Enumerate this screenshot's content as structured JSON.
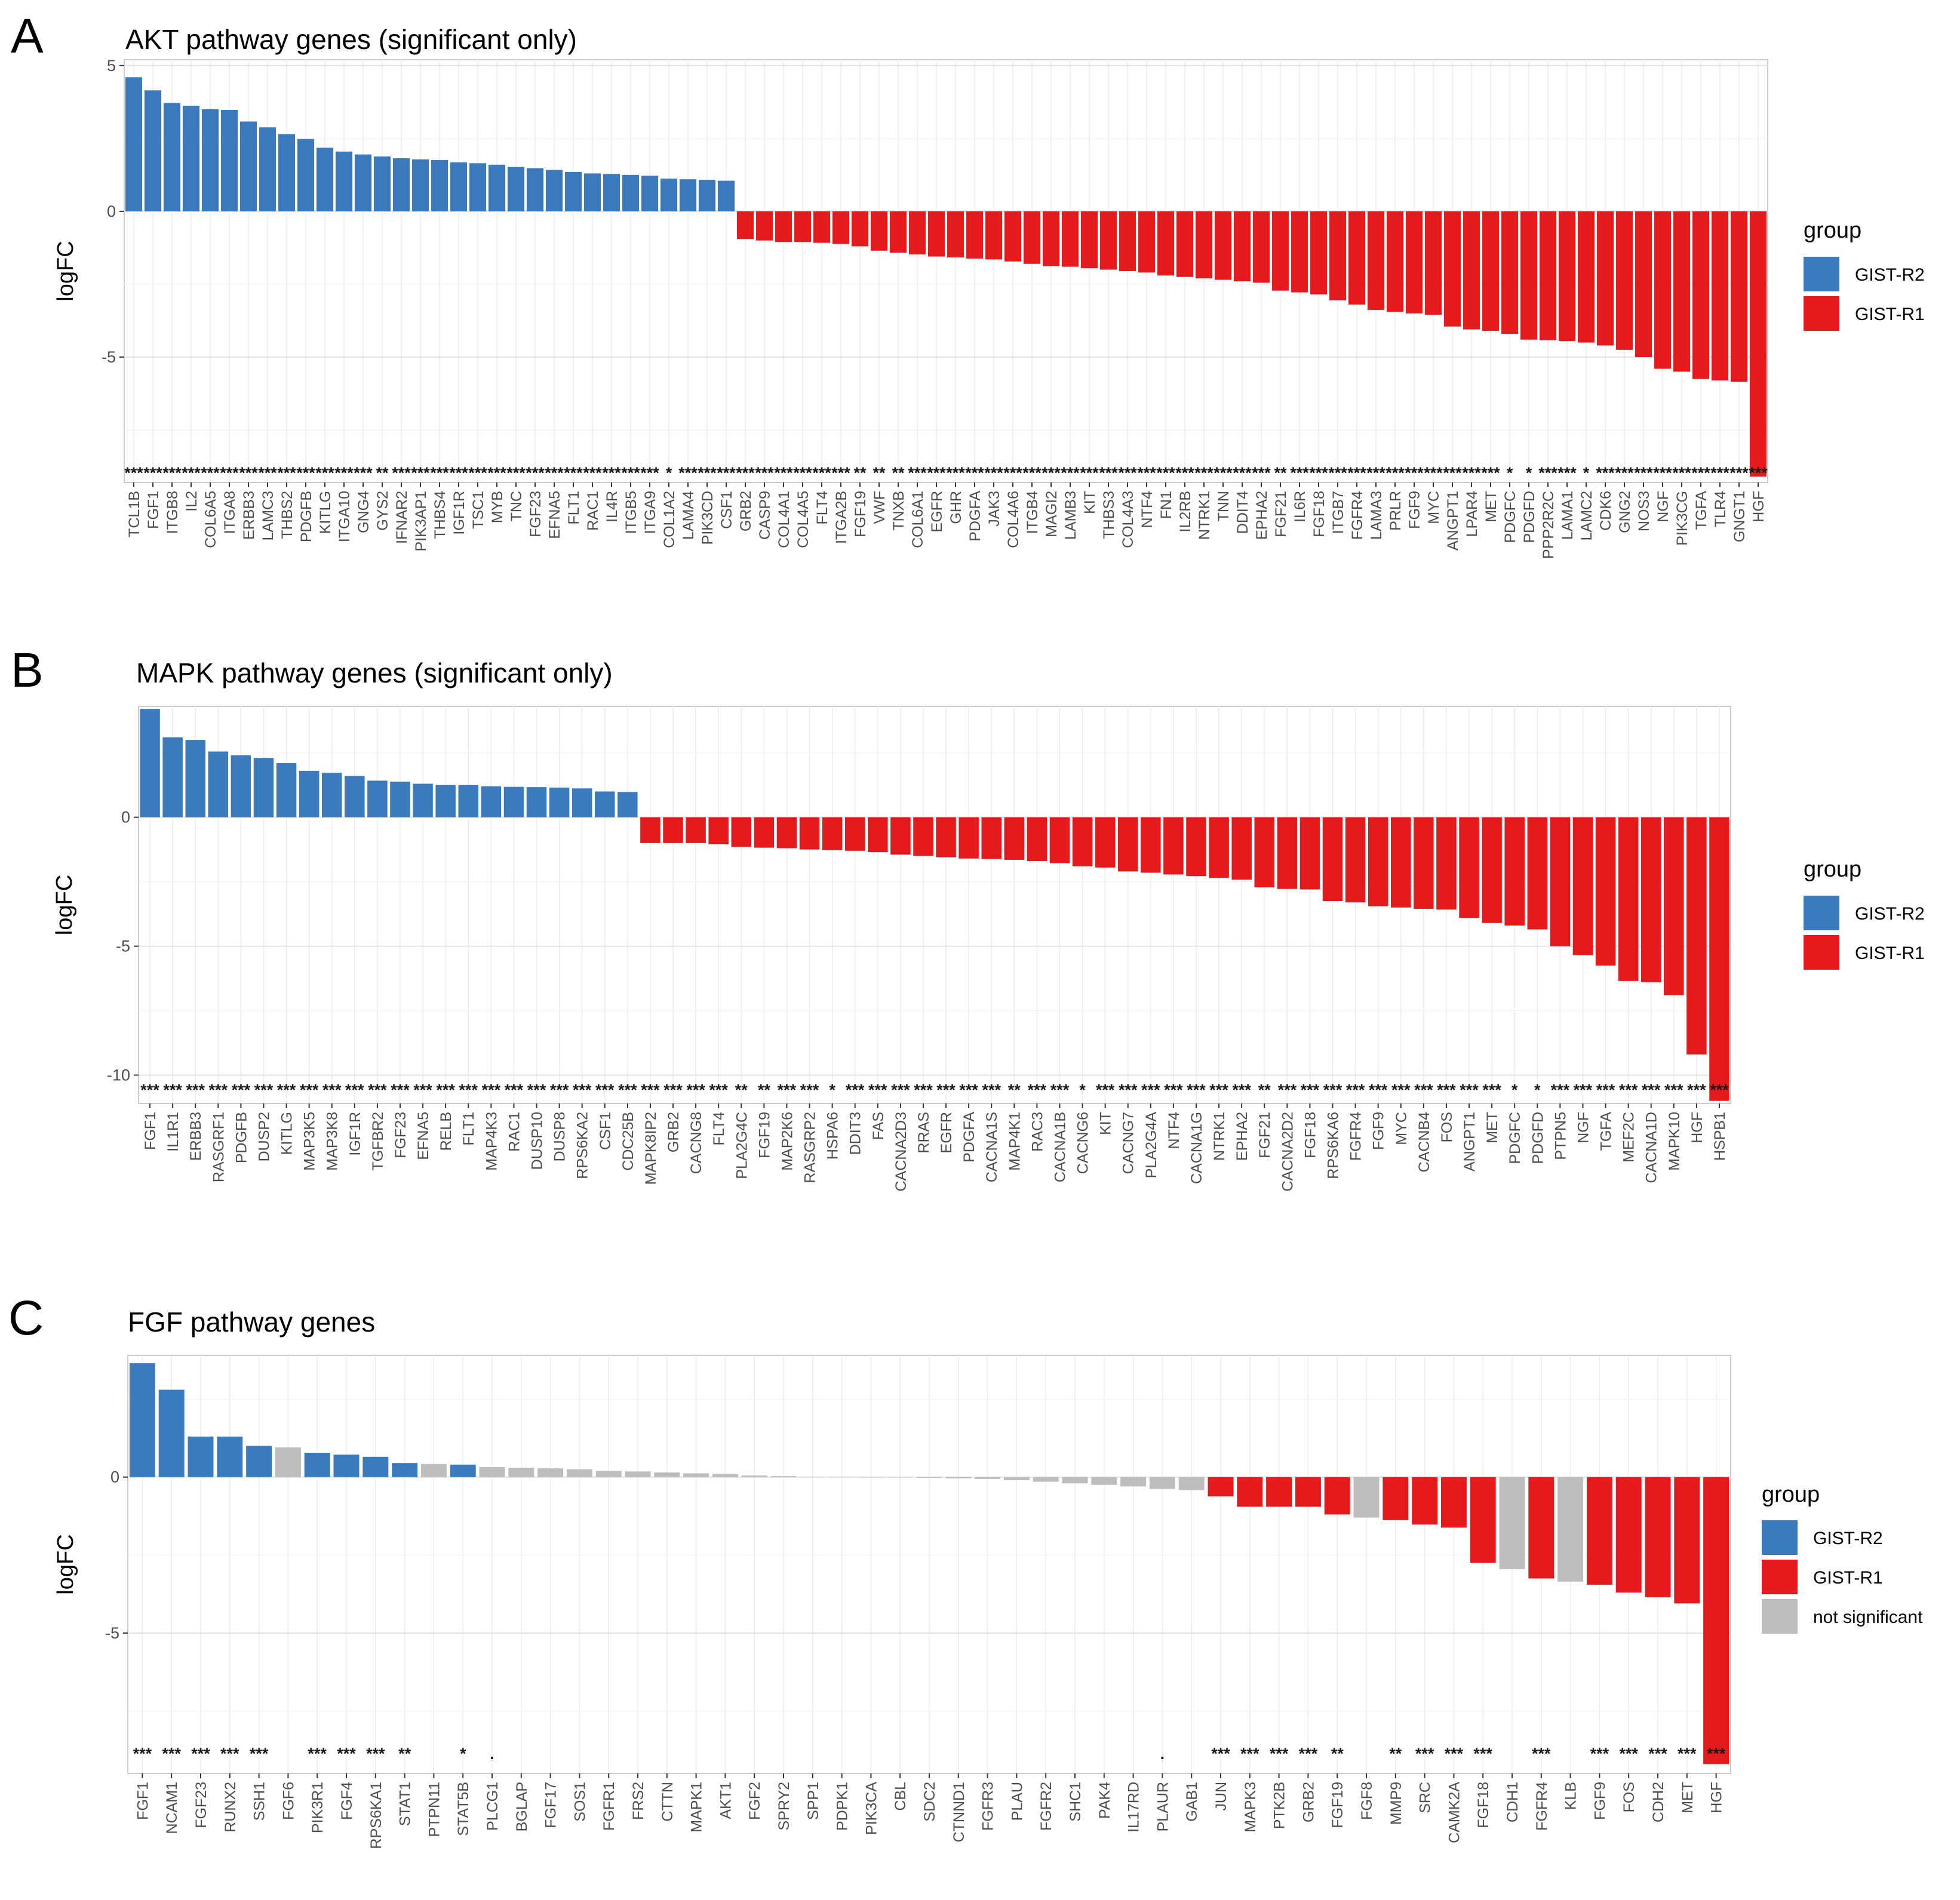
{
  "colors": {
    "GIST-R2": "#3b7bbd",
    "GIST-R1": "#e41a1c",
    "not significant": "#bdbdbd"
  },
  "chart_data": [
    {
      "panel": "A",
      "type": "bar",
      "title": "AKT pathway genes (significant only)",
      "ylabel": "logFC",
      "xlabel": "",
      "ylim": [
        -9.3,
        5.2
      ],
      "yticks": [
        5,
        0,
        -5
      ],
      "legend": {
        "title": "group",
        "entries": [
          "GIST-R2",
          "GIST-R1"
        ],
        "position": "right"
      },
      "categories": [
        "TCL1B",
        "FGF1",
        "ITGB8",
        "IL2",
        "COL6A5",
        "ITGA8",
        "ERBB3",
        "LAMC3",
        "THBS2",
        "PDGFB",
        "KITLG",
        "ITGA10",
        "GNG4",
        "GYS2",
        "IFNAR2",
        "PIK3AP1",
        "THBS4",
        "IGF1R",
        "TSC1",
        "MYB",
        "TNC",
        "FGF23",
        "EFNA5",
        "FLT1",
        "RAC1",
        "IL4R",
        "ITGB5",
        "ITGA9",
        "COL1A2",
        "LAMA4",
        "PIK3CD",
        "CSF1",
        "GRB2",
        "CASP9",
        "COL4A1",
        "COL4A5",
        "FLT4",
        "ITGA2B",
        "FGF19",
        "VWF",
        "TNXB",
        "COL6A1",
        "EGFR",
        "GHR",
        "PDGFA",
        "JAK3",
        "COL4A6",
        "ITGB4",
        "MAGI2",
        "LAMB3",
        "KIT",
        "THBS3",
        "COL4A3",
        "NTF4",
        "FN1",
        "IL2RB",
        "NTRK1",
        "TNN",
        "DDIT4",
        "EPHA2",
        "FGF21",
        "IL6R",
        "FGF18",
        "ITGB7",
        "FGFR4",
        "LAMA3",
        "PRLR",
        "FGF9",
        "MYC",
        "ANGPT1",
        "LPAR4",
        "MET",
        "PDGFC",
        "PDGFD",
        "PPP2R2C",
        "LAMA1",
        "LAMC2",
        "CDK6",
        "GNG2",
        "NOS3",
        "NGF",
        "PIK3CG",
        "TGFA",
        "TLR4",
        "GNGT1",
        "HGF"
      ],
      "values": [
        4.6,
        4.15,
        3.72,
        3.62,
        3.5,
        3.48,
        3.08,
        2.88,
        2.65,
        2.48,
        2.18,
        2.05,
        1.95,
        1.88,
        1.82,
        1.78,
        1.76,
        1.68,
        1.65,
        1.6,
        1.52,
        1.48,
        1.42,
        1.35,
        1.3,
        1.28,
        1.25,
        1.22,
        1.12,
        1.1,
        1.08,
        1.05,
        -0.95,
        -1.0,
        -1.05,
        -1.05,
        -1.08,
        -1.12,
        -1.2,
        -1.35,
        -1.42,
        -1.48,
        -1.55,
        -1.58,
        -1.62,
        -1.65,
        -1.72,
        -1.8,
        -1.88,
        -1.9,
        -1.95,
        -2.0,
        -2.05,
        -2.1,
        -2.2,
        -2.25,
        -2.3,
        -2.35,
        -2.4,
        -2.45,
        -2.72,
        -2.78,
        -2.85,
        -3.05,
        -3.2,
        -3.38,
        -3.45,
        -3.5,
        -3.55,
        -3.95,
        -4.05,
        -4.1,
        -4.2,
        -4.4,
        -4.42,
        -4.45,
        -4.5,
        -4.6,
        -4.75,
        -5.0,
        -5.4,
        -5.5,
        -5.75,
        -5.8,
        -5.85,
        -9.1
      ],
      "groups": [
        "GIST-R2",
        "GIST-R2",
        "GIST-R2",
        "GIST-R2",
        "GIST-R2",
        "GIST-R2",
        "GIST-R2",
        "GIST-R2",
        "GIST-R2",
        "GIST-R2",
        "GIST-R2",
        "GIST-R2",
        "GIST-R2",
        "GIST-R2",
        "GIST-R2",
        "GIST-R2",
        "GIST-R2",
        "GIST-R2",
        "GIST-R2",
        "GIST-R2",
        "GIST-R2",
        "GIST-R2",
        "GIST-R2",
        "GIST-R2",
        "GIST-R2",
        "GIST-R2",
        "GIST-R2",
        "GIST-R2",
        "GIST-R2",
        "GIST-R2",
        "GIST-R2",
        "GIST-R2",
        "GIST-R1",
        "GIST-R1",
        "GIST-R1",
        "GIST-R1",
        "GIST-R1",
        "GIST-R1",
        "GIST-R1",
        "GIST-R1",
        "GIST-R1",
        "GIST-R1",
        "GIST-R1",
        "GIST-R1",
        "GIST-R1",
        "GIST-R1",
        "GIST-R1",
        "GIST-R1",
        "GIST-R1",
        "GIST-R1",
        "GIST-R1",
        "GIST-R1",
        "GIST-R1",
        "GIST-R1",
        "GIST-R1",
        "GIST-R1",
        "GIST-R1",
        "GIST-R1",
        "GIST-R1",
        "GIST-R1",
        "GIST-R1",
        "GIST-R1",
        "GIST-R1",
        "GIST-R1",
        "GIST-R1",
        "GIST-R1",
        "GIST-R1",
        "GIST-R1",
        "GIST-R1",
        "GIST-R1",
        "GIST-R1",
        "GIST-R1",
        "GIST-R1",
        "GIST-R1",
        "GIST-R1",
        "GIST-R1",
        "GIST-R1",
        "GIST-R1",
        "GIST-R1",
        "GIST-R1",
        "GIST-R1",
        "GIST-R1",
        "GIST-R1",
        "GIST-R1",
        "GIST-R1",
        "GIST-R1"
      ],
      "significance": [
        "***",
        "***",
        "***",
        "***",
        "***",
        "***",
        "***",
        "***",
        "***",
        "***",
        "***",
        "***",
        "***",
        "**",
        "***",
        "***",
        "***",
        "***",
        "***",
        "***",
        "***",
        "***",
        "***",
        "***",
        "***",
        "***",
        "***",
        "***",
        "*",
        "***",
        "***",
        "***",
        "***",
        "***",
        "***",
        "***",
        "***",
        "***",
        "**",
        "**",
        "**",
        "***",
        "***",
        "***",
        "***",
        "***",
        "***",
        "***",
        "***",
        "***",
        "***",
        "***",
        "***",
        "***",
        "***",
        "***",
        "***",
        "***",
        "***",
        "***",
        "**",
        "***",
        "***",
        "***",
        "***",
        "***",
        "***",
        "***",
        "***",
        "***",
        "***",
        "***",
        "*",
        "*",
        "***",
        "***",
        "*",
        "***",
        "***",
        "***",
        "***",
        "***",
        "***",
        "***",
        "***",
        "***"
      ],
      "sig_y": -8.95
    },
    {
      "panel": "B",
      "type": "bar",
      "title": "MAPK pathway genes (significant only)",
      "ylabel": "logFC",
      "xlabel": "",
      "ylim": [
        -11.1,
        4.3
      ],
      "yticks": [
        0,
        -5,
        -10
      ],
      "legend": {
        "title": "group",
        "entries": [
          "GIST-R2",
          "GIST-R1"
        ],
        "position": "right"
      },
      "categories": [
        "FGF1",
        "IL1R1",
        "ERBB3",
        "RASGRF1",
        "PDGFB",
        "DUSP2",
        "KITLG",
        "MAP3K5",
        "MAP3K8",
        "IGF1R",
        "TGFBR2",
        "FGF23",
        "EFNA5",
        "RELB",
        "FLT1",
        "MAP4K3",
        "RAC1",
        "DUSP10",
        "DUSP8",
        "RPS6KA2",
        "CSF1",
        "CDC25B",
        "MAPK8IP2",
        "GRB2",
        "CACNG8",
        "FLT4",
        "PLA2G4C",
        "FGF19",
        "MAP2K6",
        "RASGRP2",
        "HSPA6",
        "DDIT3",
        "FAS",
        "CACNA2D3",
        "RRAS",
        "EGFR",
        "PDGFA",
        "CACNA1S",
        "MAP4K1",
        "RAC3",
        "CACNA1B",
        "CACNG6",
        "KIT",
        "CACNG7",
        "PLA2G4A",
        "NTF4",
        "CACNA1G",
        "NTRK1",
        "EPHA2",
        "FGF21",
        "CACNA2D2",
        "FGF18",
        "RPS6KA6",
        "FGFR4",
        "FGF9",
        "MYC",
        "CACNB4",
        "FOS",
        "ANGPT1",
        "MET",
        "PDGFC",
        "PDGFD",
        "PTPN5",
        "NGF",
        "TGFA",
        "MEF2C",
        "CACNA1D",
        "MAPK10",
        "HGF",
        "HSPB1"
      ],
      "values": [
        4.2,
        3.1,
        3.0,
        2.55,
        2.4,
        2.3,
        2.1,
        1.8,
        1.72,
        1.6,
        1.42,
        1.38,
        1.3,
        1.25,
        1.25,
        1.2,
        1.18,
        1.17,
        1.15,
        1.12,
        1.0,
        0.98,
        -1.0,
        -1.0,
        -1.0,
        -1.05,
        -1.15,
        -1.18,
        -1.2,
        -1.25,
        -1.28,
        -1.3,
        -1.35,
        -1.45,
        -1.5,
        -1.55,
        -1.6,
        -1.62,
        -1.65,
        -1.7,
        -1.78,
        -1.9,
        -1.95,
        -2.1,
        -2.15,
        -2.22,
        -2.28,
        -2.35,
        -2.42,
        -2.72,
        -2.78,
        -2.8,
        -3.25,
        -3.3,
        -3.45,
        -3.5,
        -3.55,
        -3.58,
        -3.9,
        -4.1,
        -4.2,
        -4.35,
        -5.0,
        -5.35,
        -5.75,
        -6.35,
        -6.4,
        -6.9,
        -9.2,
        -11.0
      ],
      "groups": [
        "GIST-R2",
        "GIST-R2",
        "GIST-R2",
        "GIST-R2",
        "GIST-R2",
        "GIST-R2",
        "GIST-R2",
        "GIST-R2",
        "GIST-R2",
        "GIST-R2",
        "GIST-R2",
        "GIST-R2",
        "GIST-R2",
        "GIST-R2",
        "GIST-R2",
        "GIST-R2",
        "GIST-R2",
        "GIST-R2",
        "GIST-R2",
        "GIST-R2",
        "GIST-R2",
        "GIST-R2",
        "GIST-R1",
        "GIST-R1",
        "GIST-R1",
        "GIST-R1",
        "GIST-R1",
        "GIST-R1",
        "GIST-R1",
        "GIST-R1",
        "GIST-R1",
        "GIST-R1",
        "GIST-R1",
        "GIST-R1",
        "GIST-R1",
        "GIST-R1",
        "GIST-R1",
        "GIST-R1",
        "GIST-R1",
        "GIST-R1",
        "GIST-R1",
        "GIST-R1",
        "GIST-R1",
        "GIST-R1",
        "GIST-R1",
        "GIST-R1",
        "GIST-R1",
        "GIST-R1",
        "GIST-R1",
        "GIST-R1",
        "GIST-R1",
        "GIST-R1",
        "GIST-R1",
        "GIST-R1",
        "GIST-R1",
        "GIST-R1",
        "GIST-R1",
        "GIST-R1",
        "GIST-R1",
        "GIST-R1",
        "GIST-R1",
        "GIST-R1",
        "GIST-R1",
        "GIST-R1",
        "GIST-R1",
        "GIST-R1",
        "GIST-R1",
        "GIST-R1",
        "GIST-R1",
        "GIST-R1"
      ],
      "significance": [
        "***",
        "***",
        "***",
        "***",
        "***",
        "***",
        "***",
        "***",
        "***",
        "***",
        "***",
        "***",
        "***",
        "***",
        "***",
        "***",
        "***",
        "***",
        "***",
        "***",
        "***",
        "***",
        "***",
        "***",
        "***",
        "***",
        "**",
        "**",
        "***",
        "***",
        "*",
        "***",
        "***",
        "***",
        "***",
        "***",
        "***",
        "***",
        "**",
        "***",
        "***",
        "*",
        "***",
        "***",
        "***",
        "***",
        "***",
        "***",
        "***",
        "**",
        "***",
        "***",
        "***",
        "***",
        "***",
        "***",
        "***",
        "***",
        "***",
        "***",
        "*",
        "*",
        "***",
        "***",
        "***",
        "***",
        "***",
        "***",
        "***",
        "***"
      ],
      "sig_y": -10.55
    },
    {
      "panel": "C",
      "type": "bar",
      "title": "FGF pathway genes",
      "ylabel": "logFC",
      "xlabel": "",
      "ylim": [
        -9.5,
        3.9
      ],
      "yticks": [
        0,
        -5
      ],
      "legend": {
        "title": "group",
        "entries": [
          "GIST-R2",
          "GIST-R1",
          "not significant"
        ],
        "position": "right"
      },
      "categories": [
        "FGF1",
        "NCAM1",
        "FGF23",
        "RUNX2",
        "SSH1",
        "FGF6",
        "PIK3R1",
        "FGF4",
        "RPS6KA1",
        "STAT1",
        "PTPN11",
        "STAT5B",
        "PLCG1",
        "BGLAP",
        "FGF17",
        "SOS1",
        "FGFR1",
        "FRS2",
        "CTTN",
        "MAPK1",
        "AKT1",
        "FGF2",
        "SPRY2",
        "SPP1",
        "PDPK1",
        "PIK3CA",
        "CBL",
        "SDC2",
        "CTNND1",
        "FGFR3",
        "PLAU",
        "FGFR2",
        "SHC1",
        "PAK4",
        "IL17RD",
        "PLAUR",
        "GAB1",
        "JUN",
        "MAPK3",
        "PTK2B",
        "GRB2",
        "FGF19",
        "FGF8",
        "MMP9",
        "SRC",
        "CAMK2A",
        "FGF18",
        "CDH1",
        "FGFR4",
        "KLB",
        "FGF9",
        "FOS",
        "CDH2",
        "MET",
        "HGF"
      ],
      "values": [
        3.65,
        2.8,
        1.3,
        1.3,
        1.0,
        0.95,
        0.78,
        0.72,
        0.65,
        0.45,
        0.42,
        0.4,
        0.32,
        0.3,
        0.28,
        0.25,
        0.2,
        0.18,
        0.15,
        0.12,
        0.1,
        0.05,
        0.03,
        0.01,
        0.005,
        0.0,
        -0.01,
        -0.02,
        -0.04,
        -0.06,
        -0.1,
        -0.15,
        -0.2,
        -0.25,
        -0.3,
        -0.38,
        -0.42,
        -0.62,
        -0.95,
        -0.95,
        -0.95,
        -1.2,
        -1.3,
        -1.38,
        -1.52,
        -1.62,
        -2.75,
        -2.95,
        -3.25,
        -3.35,
        -3.45,
        -3.7,
        -3.85,
        -4.05,
        -9.2
      ],
      "groups": [
        "GIST-R2",
        "GIST-R2",
        "GIST-R2",
        "GIST-R2",
        "GIST-R2",
        "not significant",
        "GIST-R2",
        "GIST-R2",
        "GIST-R2",
        "GIST-R2",
        "not significant",
        "GIST-R2",
        "not significant",
        "not significant",
        "not significant",
        "not significant",
        "not significant",
        "not significant",
        "not significant",
        "not significant",
        "not significant",
        "not significant",
        "not significant",
        "not significant",
        "not significant",
        "not significant",
        "not significant",
        "not significant",
        "not significant",
        "not significant",
        "not significant",
        "not significant",
        "not significant",
        "not significant",
        "not significant",
        "not significant",
        "not significant",
        "GIST-R1",
        "GIST-R1",
        "GIST-R1",
        "GIST-R1",
        "GIST-R1",
        "not significant",
        "GIST-R1",
        "GIST-R1",
        "GIST-R1",
        "GIST-R1",
        "not significant",
        "GIST-R1",
        "not significant",
        "GIST-R1",
        "GIST-R1",
        "GIST-R1",
        "GIST-R1",
        "GIST-R1"
      ],
      "significance": [
        "***",
        "***",
        "***",
        "***",
        "***",
        "",
        "***",
        "***",
        "***",
        "**",
        "",
        "*",
        ".",
        "",
        "",
        "",
        "",
        "",
        "",
        "",
        "",
        "",
        "",
        "",
        "",
        "",
        "",
        "",
        "",
        "",
        "",
        "",
        "",
        "",
        "",
        ".",
        "",
        "***",
        "***",
        "***",
        "***",
        "**",
        "",
        "**",
        "***",
        "***",
        "***",
        "",
        "***",
        "",
        "***",
        "***",
        "***",
        "***",
        "***"
      ],
      "sig_y": -8.85
    }
  ]
}
